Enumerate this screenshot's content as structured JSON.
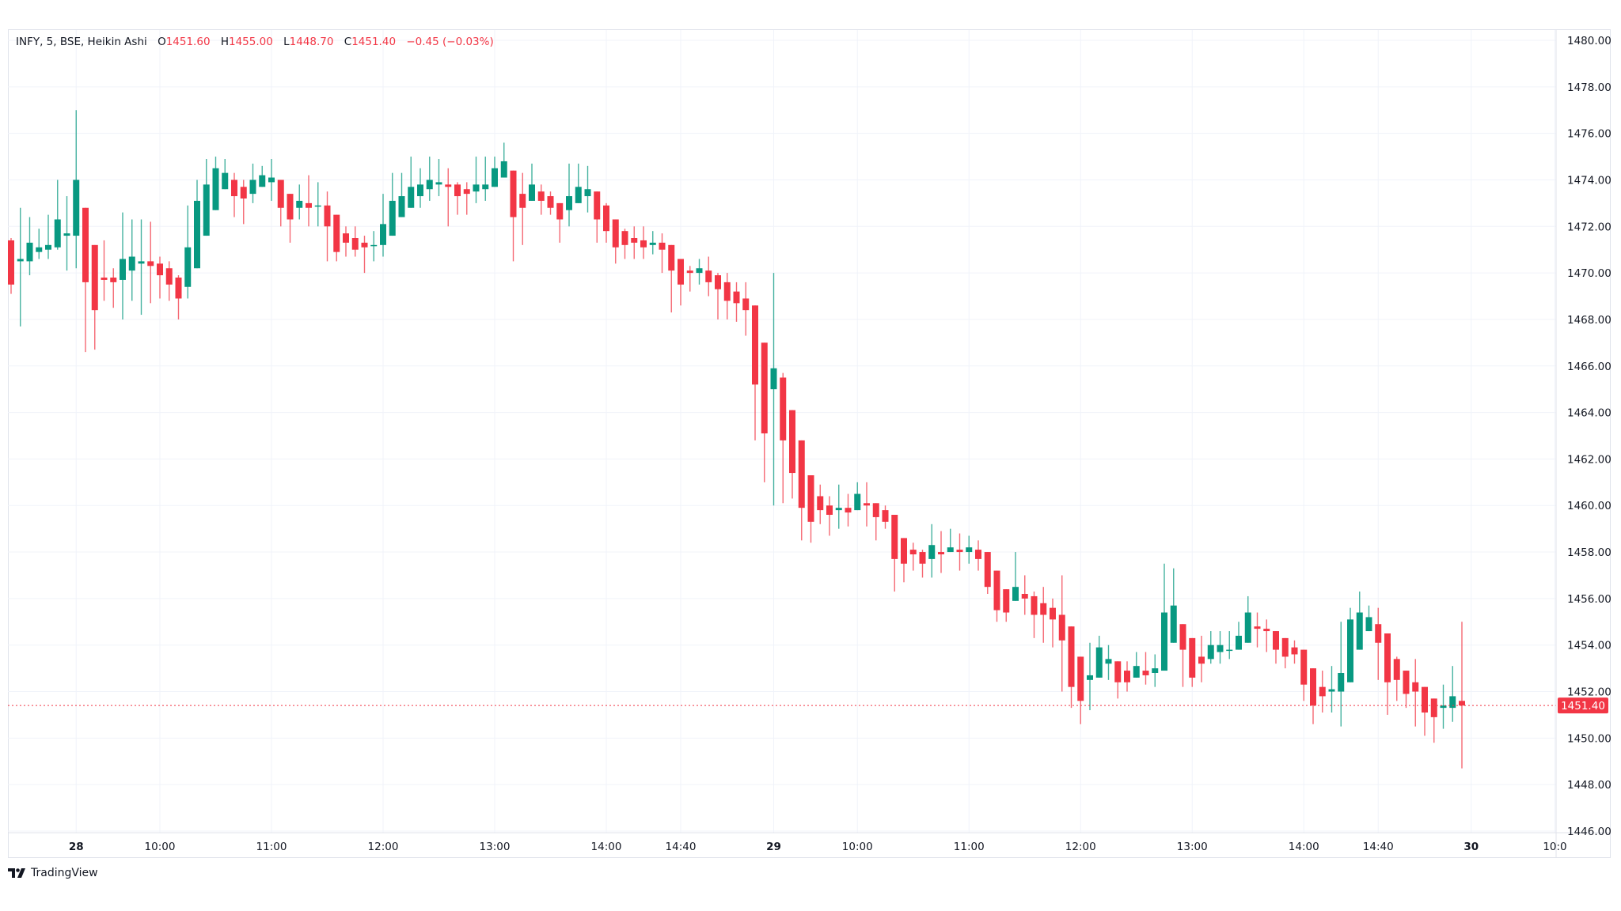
{
  "legend": {
    "symbol": "INFY, 5, BSE, Heikin Ashi",
    "open_key": "O",
    "open": "1451.60",
    "high_key": "H",
    "high": "1455.00",
    "low_key": "L",
    "low": "1448.70",
    "close_key": "C",
    "close": "1451.40",
    "change": "−0.45 (−0.03%)"
  },
  "branding": {
    "name": "TradingView",
    "icon": "tradingview-logo-icon"
  },
  "colors": {
    "up": "#089981",
    "down": "#f23645",
    "grid": "#f0f3fa",
    "axis_text": "#131722",
    "last_price": "#f23645"
  },
  "chart_data": {
    "type": "candlestick",
    "style": "Heikin Ashi",
    "symbol": "INFY",
    "interval": "5",
    "exchange": "BSE",
    "ylim": [
      1446,
      1480
    ],
    "y_ticks": [
      "1480.00",
      "1478.00",
      "1476.00",
      "1474.00",
      "1472.00",
      "1470.00",
      "1468.00",
      "1466.00",
      "1464.00",
      "1462.00",
      "1460.00",
      "1458.00",
      "1456.00",
      "1454.00",
      "1452.00",
      "1450.00",
      "1448.00",
      "1446.00"
    ],
    "x_ticks": [
      "28",
      "10:00",
      "11:00",
      "12:00",
      "13:00",
      "14:00",
      "14:40",
      "29",
      "10:00",
      "11:00",
      "12:00",
      "13:00",
      "14:00",
      "14:40",
      "30",
      "10:0"
    ],
    "last_price": "1451.40",
    "grid": true,
    "ohlc_fields": [
      "open",
      "high",
      "low",
      "close"
    ],
    "ohlc": [
      [
        1471.4,
        1471.5,
        1469.1,
        1469.5
      ],
      [
        1470.5,
        1472.8,
        1467.7,
        1470.6
      ],
      [
        1470.5,
        1472.4,
        1469.9,
        1471.3
      ],
      [
        1470.9,
        1471.9,
        1470.6,
        1471.1
      ],
      [
        1471.0,
        1472.5,
        1470.6,
        1471.2
      ],
      [
        1471.1,
        1474.0,
        1471.0,
        1472.3
      ],
      [
        1471.6,
        1473.3,
        1470.1,
        1471.7
      ],
      [
        1471.6,
        1477.0,
        1470.2,
        1474.0
      ],
      [
        1472.8,
        1472.8,
        1466.6,
        1469.6
      ],
      [
        1471.2,
        1471.2,
        1466.7,
        1468.4
      ],
      [
        1469.8,
        1471.4,
        1468.8,
        1469.7
      ],
      [
        1469.8,
        1470.2,
        1468.5,
        1469.6
      ],
      [
        1469.7,
        1472.6,
        1468.0,
        1470.6
      ],
      [
        1470.1,
        1472.3,
        1468.8,
        1470.7
      ],
      [
        1470.4,
        1472.3,
        1468.2,
        1470.5
      ],
      [
        1470.5,
        1472.2,
        1468.7,
        1470.3
      ],
      [
        1470.4,
        1470.7,
        1468.9,
        1469.9
      ],
      [
        1470.2,
        1470.5,
        1468.8,
        1469.5
      ],
      [
        1469.8,
        1469.9,
        1468.0,
        1468.9
      ],
      [
        1469.4,
        1472.9,
        1468.9,
        1471.1
      ],
      [
        1470.2,
        1474.0,
        1470.2,
        1473.1
      ],
      [
        1471.6,
        1474.9,
        1471.6,
        1473.8
      ],
      [
        1472.7,
        1475.0,
        1472.7,
        1474.5
      ],
      [
        1473.6,
        1474.9,
        1473.6,
        1474.3
      ],
      [
        1474.0,
        1474.3,
        1472.4,
        1473.3
      ],
      [
        1473.7,
        1474.0,
        1472.1,
        1473.2
      ],
      [
        1473.4,
        1474.7,
        1473.0,
        1474.0
      ],
      [
        1473.7,
        1474.6,
        1473.7,
        1474.2
      ],
      [
        1473.9,
        1474.9,
        1473.1,
        1474.1
      ],
      [
        1474.0,
        1474.0,
        1472.0,
        1472.8
      ],
      [
        1473.4,
        1473.4,
        1471.3,
        1472.3
      ],
      [
        1472.8,
        1473.8,
        1472.3,
        1473.1
      ],
      [
        1473.0,
        1474.2,
        1472.0,
        1472.8
      ],
      [
        1472.9,
        1473.9,
        1472.0,
        1472.9
      ],
      [
        1472.9,
        1473.5,
        1470.5,
        1472.0
      ],
      [
        1472.5,
        1472.5,
        1470.5,
        1470.9
      ],
      [
        1471.7,
        1472.0,
        1470.7,
        1471.3
      ],
      [
        1471.5,
        1472.0,
        1470.7,
        1471.0
      ],
      [
        1471.3,
        1471.6,
        1470.0,
        1471.1
      ],
      [
        1471.2,
        1471.8,
        1470.5,
        1471.2
      ],
      [
        1471.2,
        1473.4,
        1470.7,
        1472.1
      ],
      [
        1471.6,
        1474.3,
        1471.6,
        1473.1
      ],
      [
        1472.4,
        1474.3,
        1472.4,
        1473.3
      ],
      [
        1472.8,
        1475.0,
        1472.8,
        1473.7
      ],
      [
        1473.3,
        1474.5,
        1472.8,
        1473.8
      ],
      [
        1473.6,
        1475.0,
        1473.1,
        1474.0
      ],
      [
        1473.8,
        1474.9,
        1473.3,
        1473.9
      ],
      [
        1473.8,
        1474.5,
        1472.0,
        1473.7
      ],
      [
        1473.8,
        1473.9,
        1472.5,
        1473.3
      ],
      [
        1473.6,
        1473.9,
        1472.5,
        1473.4
      ],
      [
        1473.5,
        1475.0,
        1473.0,
        1473.8
      ],
      [
        1473.6,
        1475.0,
        1473.1,
        1473.8
      ],
      [
        1473.7,
        1475.0,
        1473.7,
        1474.5
      ],
      [
        1474.1,
        1475.6,
        1474.1,
        1474.8
      ],
      [
        1474.4,
        1474.4,
        1470.5,
        1472.4
      ],
      [
        1473.4,
        1474.3,
        1471.2,
        1472.8
      ],
      [
        1473.1,
        1474.7,
        1473.1,
        1473.8
      ],
      [
        1473.5,
        1473.8,
        1472.5,
        1473.1
      ],
      [
        1473.3,
        1473.5,
        1472.5,
        1472.8
      ],
      [
        1473.0,
        1473.0,
        1471.3,
        1472.3
      ],
      [
        1472.7,
        1474.7,
        1472.0,
        1473.3
      ],
      [
        1473.0,
        1474.7,
        1473.0,
        1473.7
      ],
      [
        1473.3,
        1474.6,
        1472.6,
        1473.6
      ],
      [
        1473.5,
        1473.5,
        1471.3,
        1472.3
      ],
      [
        1472.9,
        1473.0,
        1471.3,
        1471.8
      ],
      [
        1472.3,
        1472.3,
        1470.4,
        1471.1
      ],
      [
        1471.8,
        1471.9,
        1470.6,
        1471.2
      ],
      [
        1471.5,
        1472.0,
        1470.6,
        1471.3
      ],
      [
        1471.4,
        1472.0,
        1470.6,
        1471.1
      ],
      [
        1471.2,
        1471.8,
        1470.8,
        1471.3
      ],
      [
        1471.3,
        1471.7,
        1470.0,
        1471.0
      ],
      [
        1471.2,
        1471.2,
        1468.3,
        1470.1
      ],
      [
        1470.6,
        1470.6,
        1468.6,
        1469.5
      ],
      [
        1470.1,
        1470.3,
        1469.2,
        1470.0
      ],
      [
        1470.0,
        1470.6,
        1469.5,
        1470.2
      ],
      [
        1470.1,
        1470.7,
        1469.0,
        1469.6
      ],
      [
        1469.9,
        1470.0,
        1468.0,
        1469.3
      ],
      [
        1469.6,
        1470.0,
        1468.0,
        1468.8
      ],
      [
        1469.2,
        1469.6,
        1467.9,
        1468.7
      ],
      [
        1468.9,
        1469.6,
        1467.3,
        1468.4
      ],
      [
        1468.6,
        1468.6,
        1462.8,
        1465.2
      ],
      [
        1467.0,
        1467.0,
        1461.0,
        1463.1
      ],
      [
        1465.0,
        1470.0,
        1460.0,
        1465.9
      ],
      [
        1465.5,
        1465.7,
        1460.1,
        1462.8
      ],
      [
        1464.1,
        1464.1,
        1460.3,
        1461.4
      ],
      [
        1462.8,
        1462.8,
        1458.5,
        1459.9
      ],
      [
        1461.3,
        1461.3,
        1458.4,
        1459.3
      ],
      [
        1460.4,
        1460.9,
        1459.2,
        1459.8
      ],
      [
        1460.0,
        1460.4,
        1458.7,
        1459.6
      ],
      [
        1459.8,
        1460.9,
        1459.0,
        1459.9
      ],
      [
        1459.9,
        1460.5,
        1459.1,
        1459.7
      ],
      [
        1459.8,
        1461.0,
        1459.8,
        1460.5
      ],
      [
        1460.1,
        1461.0,
        1459.1,
        1460.0
      ],
      [
        1460.1,
        1460.1,
        1458.5,
        1459.5
      ],
      [
        1459.8,
        1460.0,
        1459.0,
        1459.3
      ],
      [
        1459.6,
        1459.6,
        1456.3,
        1457.7
      ],
      [
        1458.6,
        1458.6,
        1456.7,
        1457.5
      ],
      [
        1458.1,
        1458.4,
        1457.2,
        1457.9
      ],
      [
        1458.0,
        1458.1,
        1456.9,
        1457.5
      ],
      [
        1457.7,
        1459.2,
        1456.9,
        1458.3
      ],
      [
        1458.0,
        1458.9,
        1457.1,
        1457.9
      ],
      [
        1458.0,
        1459.0,
        1458.0,
        1458.2
      ],
      [
        1458.1,
        1458.8,
        1457.2,
        1458.0
      ],
      [
        1458.0,
        1458.7,
        1457.5,
        1458.2
      ],
      [
        1458.1,
        1458.5,
        1457.2,
        1457.7
      ],
      [
        1458.0,
        1458.0,
        1456.2,
        1456.5
      ],
      [
        1457.2,
        1457.2,
        1455.0,
        1455.5
      ],
      [
        1456.4,
        1456.4,
        1455.0,
        1455.4
      ],
      [
        1455.9,
        1458.0,
        1455.9,
        1456.5
      ],
      [
        1456.2,
        1457.0,
        1455.3,
        1456.0
      ],
      [
        1456.1,
        1456.3,
        1454.3,
        1455.3
      ],
      [
        1455.8,
        1456.5,
        1454.1,
        1455.3
      ],
      [
        1455.6,
        1456.0,
        1453.9,
        1455.1
      ],
      [
        1455.3,
        1457.0,
        1452.0,
        1454.2
      ],
      [
        1454.8,
        1454.8,
        1451.3,
        1452.2
      ],
      [
        1453.5,
        1453.5,
        1450.6,
        1451.6
      ],
      [
        1452.5,
        1454.1,
        1451.2,
        1452.7
      ],
      [
        1452.6,
        1454.4,
        1452.6,
        1453.9
      ],
      [
        1453.2,
        1454.0,
        1452.5,
        1453.4
      ],
      [
        1453.3,
        1453.3,
        1451.7,
        1452.4
      ],
      [
        1452.9,
        1453.3,
        1452.0,
        1452.4
      ],
      [
        1452.6,
        1453.7,
        1452.6,
        1453.1
      ],
      [
        1452.9,
        1453.7,
        1452.3,
        1452.7
      ],
      [
        1452.8,
        1453.6,
        1452.2,
        1453.0
      ],
      [
        1452.9,
        1457.5,
        1452.9,
        1455.4
      ],
      [
        1454.1,
        1457.3,
        1454.1,
        1455.7
      ],
      [
        1454.9,
        1454.9,
        1452.2,
        1453.8
      ],
      [
        1454.3,
        1454.3,
        1452.2,
        1452.6
      ],
      [
        1453.5,
        1454.4,
        1452.4,
        1453.2
      ],
      [
        1453.4,
        1454.6,
        1453.2,
        1454.0
      ],
      [
        1453.7,
        1454.6,
        1453.2,
        1454.0
      ],
      [
        1453.8,
        1454.6,
        1453.4,
        1453.8
      ],
      [
        1453.8,
        1455.0,
        1453.8,
        1454.4
      ],
      [
        1454.1,
        1456.1,
        1454.1,
        1455.4
      ],
      [
        1454.8,
        1455.4,
        1453.9,
        1454.7
      ],
      [
        1454.7,
        1455.1,
        1453.7,
        1454.6
      ],
      [
        1454.6,
        1454.6,
        1453.2,
        1453.8
      ],
      [
        1454.3,
        1454.3,
        1453.0,
        1453.5
      ],
      [
        1453.9,
        1454.2,
        1453.2,
        1453.6
      ],
      [
        1453.8,
        1453.8,
        1451.6,
        1452.3
      ],
      [
        1453.0,
        1453.0,
        1450.6,
        1451.4
      ],
      [
        1452.2,
        1452.9,
        1451.1,
        1451.8
      ],
      [
        1452.0,
        1453.1,
        1451.1,
        1452.1
      ],
      [
        1452.0,
        1455.0,
        1450.5,
        1452.8
      ],
      [
        1452.4,
        1455.6,
        1452.4,
        1455.1
      ],
      [
        1453.8,
        1456.3,
        1453.8,
        1455.4
      ],
      [
        1454.6,
        1455.7,
        1454.6,
        1455.2
      ],
      [
        1454.9,
        1455.6,
        1452.5,
        1454.1
      ],
      [
        1454.5,
        1454.5,
        1451.0,
        1452.4
      ],
      [
        1453.4,
        1453.5,
        1451.6,
        1452.5
      ],
      [
        1452.9,
        1452.9,
        1451.3,
        1451.9
      ],
      [
        1452.4,
        1453.4,
        1450.5,
        1452.0
      ],
      [
        1452.2,
        1452.2,
        1450.1,
        1451.1
      ],
      [
        1451.7,
        1451.7,
        1449.8,
        1450.9
      ],
      [
        1451.3,
        1452.3,
        1450.4,
        1451.4
      ],
      [
        1451.3,
        1453.1,
        1450.7,
        1451.8
      ],
      [
        1451.6,
        1455.0,
        1448.7,
        1451.4
      ]
    ]
  }
}
